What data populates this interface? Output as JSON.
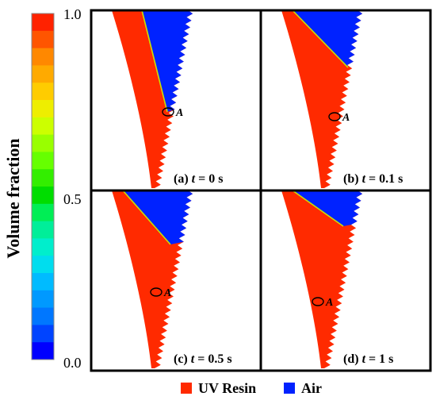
{
  "colorbar": {
    "axis_label": "Volume fraction",
    "tick_labels": [
      "1.0",
      "0.5",
      "0.0"
    ],
    "colors": [
      "#ff2200",
      "#ff5500",
      "#ff8800",
      "#ffaa00",
      "#ffcc00",
      "#eeee00",
      "#ccff00",
      "#99ff00",
      "#66ff00",
      "#33ee00",
      "#00dd00",
      "#00ee55",
      "#00ee99",
      "#00eecc",
      "#00ddee",
      "#00bbff",
      "#0099ff",
      "#0077ff",
      "#0044ff",
      "#0000ff"
    ]
  },
  "panels": [
    {
      "caption_prefix": "(a) ",
      "t_symbol": "t",
      "caption_value": " = 0 s",
      "point_label": "A"
    },
    {
      "caption_prefix": "(b) ",
      "t_symbol": "t",
      "caption_value": " = 0.1 s",
      "point_label": "A"
    },
    {
      "caption_prefix": "(c) ",
      "t_symbol": "t",
      "caption_value": " = 0.5 s",
      "point_label": "A"
    },
    {
      "caption_prefix": "(d) ",
      "t_symbol": "t",
      "caption_value": " = 1 s",
      "point_label": "A"
    }
  ],
  "legend": {
    "resin_label": "UV Resin",
    "air_label": "Air",
    "resin_color": "#ff2a00",
    "air_color": "#0022ff"
  }
}
